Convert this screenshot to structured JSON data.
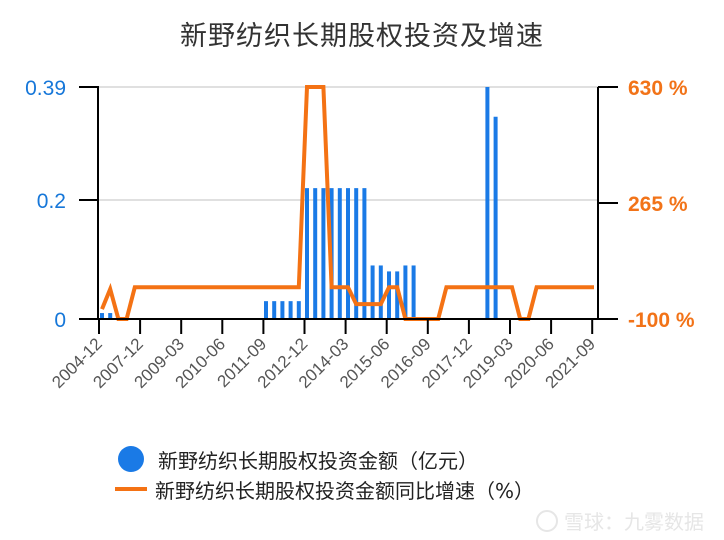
{
  "title": "新野纺织长期股权投资及增速",
  "colors": {
    "bar": "#1a7ae6",
    "line": "#f47214",
    "left_axis_text": "#1677d9",
    "right_axis_text": "#f27318",
    "grid": "#e0e0e0"
  },
  "legend": [
    {
      "label": "新野纺织长期股权投资金额（亿元）",
      "type": "bar"
    },
    {
      "label": "新野纺织长期股权投资金额同比增速（%）",
      "type": "line"
    }
  ],
  "watermark": "雪球：九雾数据",
  "chart_data": {
    "type": "bar+line",
    "title": "新野纺织长期股权投资及增速",
    "left_axis": {
      "ticks": [
        "0",
        "0.2",
        "0.39"
      ],
      "ylim": [
        0,
        0.39
      ]
    },
    "right_axis": {
      "ticks": [
        "-100 %",
        "265 %",
        "630 %"
      ],
      "ylim": [
        -100,
        630
      ]
    },
    "xtick_labels": [
      "2004-12",
      "2007-12",
      "2009-03",
      "2010-06",
      "2011-09",
      "2012-12",
      "2014-03",
      "2015-06",
      "2016-09",
      "2017-12",
      "2019-03",
      "2020-06",
      "2021-09"
    ],
    "xtick_every": 5,
    "categories_count": 61,
    "series": [
      {
        "name": "新野纺织长期股权投资金额（亿元）",
        "axis": "left",
        "type": "bar",
        "values": [
          0.01,
          0.01,
          0,
          0,
          0,
          0,
          0,
          0,
          0,
          0,
          0,
          0,
          0,
          0,
          0,
          0,
          0,
          0,
          0,
          0,
          0.03,
          0.03,
          0.03,
          0.03,
          0.03,
          0.22,
          0.22,
          0.22,
          0.22,
          0.22,
          0.22,
          0.22,
          0.22,
          0.09,
          0.09,
          0.08,
          0.08,
          0.09,
          0.09,
          0,
          0,
          0,
          0,
          0,
          0,
          0,
          0,
          0.39,
          0.34,
          0,
          0,
          0,
          0,
          0,
          0,
          0,
          0,
          0,
          0,
          0,
          0
        ]
      },
      {
        "name": "新野纺织长期股权投资金额同比增速（%）",
        "axis": "right",
        "type": "line",
        "values": [
          -69,
          -6,
          -100,
          -100,
          0,
          0,
          0,
          0,
          0,
          0,
          0,
          0,
          0,
          0,
          0,
          0,
          0,
          0,
          0,
          0,
          0,
          0,
          0,
          0,
          0,
          630,
          630,
          630,
          0,
          0,
          0,
          -53,
          -53,
          -53,
          -53,
          0,
          0,
          -100,
          -100,
          -100,
          -100,
          -100,
          0,
          0,
          0,
          0,
          0,
          0,
          0,
          0,
          0,
          -100,
          -100,
          0,
          0,
          0,
          0,
          0,
          0,
          0,
          0
        ]
      }
    ]
  }
}
